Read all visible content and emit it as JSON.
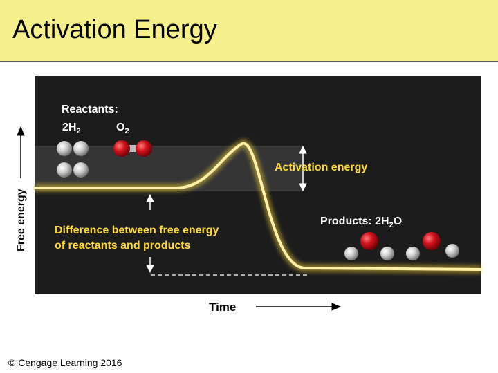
{
  "title": "Activation Energy",
  "reactants": {
    "heading": "Reactants:",
    "h2": {
      "base": "2H",
      "sub": "2"
    },
    "o2": {
      "base": "O",
      "sub": "2"
    }
  },
  "activation_label": "Activation energy",
  "difference_label": {
    "line1": "Difference between free energy",
    "line2": "of reactants and products"
  },
  "products": {
    "label": "Products: 2H",
    "sub": "2",
    "tail": "O"
  },
  "y_axis_label": "Free energy",
  "x_axis_label": "Time",
  "copyright": "© Cengage Learning 2016",
  "colors": {
    "title_bg": "#f5ef8c",
    "panel_bg": "#1c1c1c",
    "curve": "#ffd83a",
    "hydrogen": "#cfcfcf",
    "oxygen": "#d0121c"
  }
}
